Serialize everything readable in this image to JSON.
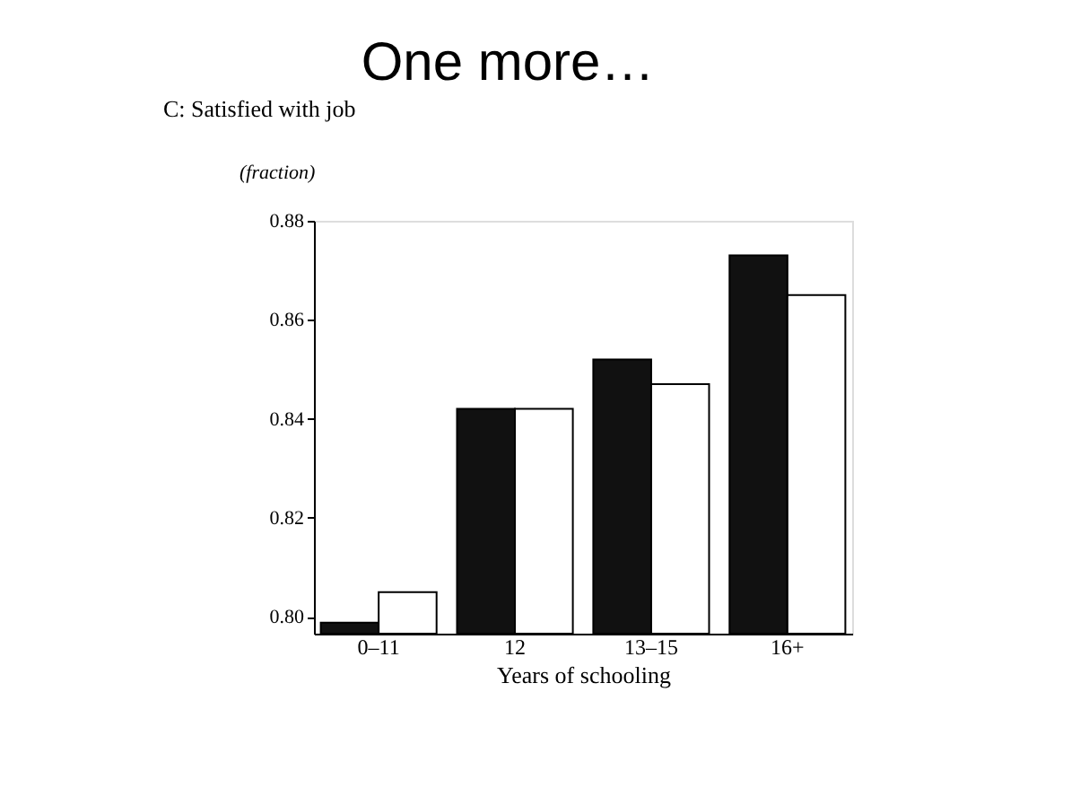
{
  "chart_data": {
    "type": "bar",
    "title": "One more…",
    "subtitle": "C: Satisfied with job",
    "ylabel": "(fraction)",
    "xlabel": "Years of schooling",
    "categories": [
      "0–11",
      "12",
      "13–15",
      "16+"
    ],
    "series": [
      {
        "color": "#111111",
        "values": [
          0.7988,
          0.842,
          0.852,
          0.873
        ]
      },
      {
        "color": "#ffffff",
        "values": [
          0.805,
          0.842,
          0.847,
          0.865
        ]
      }
    ],
    "ylim": [
      0.7966,
      0.88
    ],
    "yticks": [
      {
        "value": 0.8,
        "label": "0.80"
      },
      0.82,
      0.84,
      0.86,
      0.88
    ],
    "grid": false
  }
}
